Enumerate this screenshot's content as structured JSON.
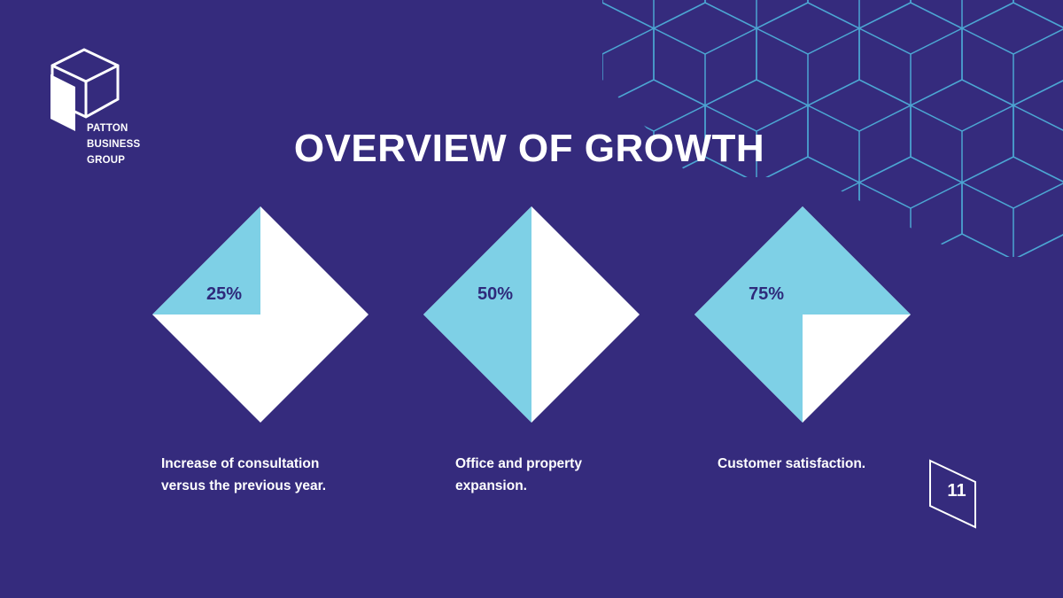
{
  "brand": {
    "name_lines": [
      "PATTON",
      "BUSINESS",
      "GROUP"
    ]
  },
  "slide": {
    "title": "OVERVIEW OF GROWTH",
    "page_number": "11"
  },
  "stats": [
    {
      "value": "25%",
      "fraction": 0.25,
      "caption": "Increase of consultation versus the previous year."
    },
    {
      "value": "50%",
      "fraction": 0.5,
      "caption": "Office and property expansion."
    },
    {
      "value": "75%",
      "fraction": 0.75,
      "caption": "Customer satisfaction."
    }
  ],
  "colors": {
    "background": "#352b7d",
    "accent": "#7ed0e6",
    "white": "#ffffff",
    "pattern_stroke": "#4fb3dc"
  }
}
